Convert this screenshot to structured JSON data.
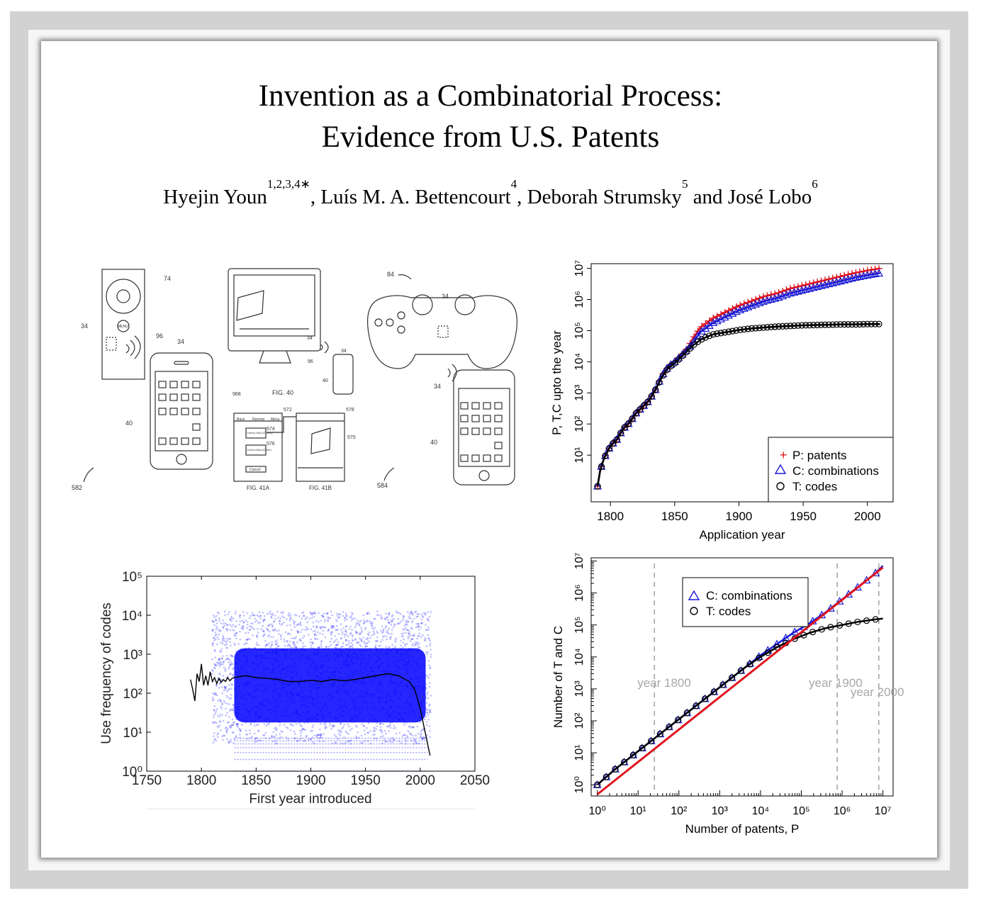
{
  "paper": {
    "title_line1": "Invention as a Combinatorial Process:",
    "title_line2": "Evidence from U.S. Patents",
    "authors": [
      {
        "name": "Hyejin Youn",
        "sup": "1,2,3,4∗",
        "sep": ", "
      },
      {
        "name": "Luís M. A. Bettencourt",
        "sup": "4",
        "sep": ", "
      },
      {
        "name": "Deborah Strumsky",
        "sup": "5",
        "sep": " and "
      },
      {
        "name": "José Lobo",
        "sup": "6",
        "sep": ""
      }
    ]
  },
  "drawings": {
    "labels": [
      "74",
      "34",
      "96",
      "34",
      "40",
      "582",
      "968",
      "FIG. 40",
      "34",
      "96",
      "34",
      "40",
      "572",
      "578",
      "574",
      "576",
      "570",
      "FIG. 41A",
      "FIG. 41B",
      "84",
      "34",
      "34",
      "40",
      "584"
    ],
    "ui_text": [
      "MENU",
      "Remote",
      "Menu",
      "Back",
      "Centro-Mac (iTunes)",
      "Centro-Mac (Other)",
      "Cancel"
    ]
  },
  "chart_data": [
    {
      "type": "line",
      "xlabel": "Application year",
      "ylabel": "P, T,C upto the year",
      "xlim": [
        1785,
        2020
      ],
      "ylim_log10": [
        -0.5,
        7.15
      ],
      "xticks": [
        1800,
        1850,
        1900,
        1950,
        2000
      ],
      "yticks": [
        "10¹",
        "10²",
        "10³",
        "10⁴",
        "10⁵",
        "10⁶",
        "10⁷"
      ],
      "legend_position": "bottom-right",
      "series": [
        {
          "name": "P: patents",
          "color": "#e0141e",
          "marker": "plus",
          "x": [
            1790,
            1792,
            1795,
            1800,
            1805,
            1810,
            1815,
            1820,
            1825,
            1830,
            1835,
            1840,
            1845,
            1850,
            1855,
            1860,
            1865,
            1870,
            1875,
            1880,
            1890,
            1900,
            1910,
            1920,
            1930,
            1940,
            1950,
            1960,
            1970,
            1980,
            1990,
            2000,
            2010
          ],
          "log10_y": [
            0.0,
            0.5,
            0.9,
            1.3,
            1.5,
            1.85,
            2.05,
            2.35,
            2.55,
            2.75,
            3.1,
            3.55,
            3.85,
            4.0,
            4.2,
            4.45,
            4.8,
            5.1,
            5.25,
            5.4,
            5.6,
            5.8,
            5.95,
            6.1,
            6.2,
            6.35,
            6.45,
            6.55,
            6.65,
            6.75,
            6.85,
            6.93,
            7.0
          ]
        },
        {
          "name": "C: combinations",
          "color": "#1a1ad6",
          "marker": "triangle",
          "x": [
            1790,
            1792,
            1795,
            1800,
            1805,
            1810,
            1815,
            1820,
            1825,
            1830,
            1835,
            1840,
            1845,
            1850,
            1855,
            1860,
            1865,
            1870,
            1875,
            1880,
            1890,
            1900,
            1910,
            1920,
            1930,
            1940,
            1950,
            1960,
            1970,
            1980,
            1990,
            2000,
            2010
          ],
          "log10_y": [
            0.0,
            0.5,
            0.9,
            1.3,
            1.5,
            1.85,
            2.05,
            2.35,
            2.55,
            2.75,
            3.1,
            3.55,
            3.85,
            4.0,
            4.2,
            4.4,
            4.65,
            4.95,
            5.1,
            5.25,
            5.45,
            5.65,
            5.8,
            5.95,
            6.05,
            6.2,
            6.3,
            6.4,
            6.5,
            6.6,
            6.7,
            6.78,
            6.85
          ]
        },
        {
          "name": "T: codes",
          "color": "#000000",
          "marker": "circle",
          "x": [
            1790,
            1792,
            1795,
            1800,
            1805,
            1810,
            1815,
            1820,
            1825,
            1830,
            1835,
            1840,
            1845,
            1850,
            1855,
            1860,
            1865,
            1870,
            1875,
            1880,
            1890,
            1900,
            1910,
            1920,
            1930,
            1940,
            1950,
            1960,
            1970,
            1980,
            1990,
            2000,
            2010
          ],
          "log10_y": [
            0.0,
            0.5,
            0.9,
            1.3,
            1.5,
            1.85,
            2.05,
            2.35,
            2.55,
            2.75,
            3.1,
            3.5,
            3.8,
            3.95,
            4.15,
            4.35,
            4.55,
            4.7,
            4.8,
            4.88,
            4.95,
            5.02,
            5.07,
            5.1,
            5.13,
            5.15,
            5.17,
            5.18,
            5.19,
            5.2,
            5.2,
            5.21,
            5.21
          ]
        }
      ]
    },
    {
      "type": "scatter",
      "xlabel": "First year introduced",
      "ylabel": "Use frequency of codes",
      "xlim": [
        1750,
        2050
      ],
      "ylim_log10": [
        0,
        5
      ],
      "xticks": [
        1750,
        1800,
        1850,
        1900,
        1950,
        2000,
        2050
      ],
      "yticks": [
        "10⁰",
        "10¹",
        "10²",
        "10³",
        "10⁴",
        "10⁵"
      ],
      "point_color": "#0000ff",
      "cloud": {
        "x_start": 1830,
        "x_end": 2005,
        "log10_low": 1.0,
        "log10_high": 3.5
      },
      "series": [
        {
          "type": "line",
          "color": "#000000",
          "x": [
            1790,
            1792,
            1794,
            1796,
            1798,
            1800,
            1802,
            1804,
            1806,
            1808,
            1810,
            1812,
            1814,
            1816,
            1818,
            1820,
            1822,
            1824,
            1826,
            1828,
            1830,
            1840,
            1850,
            1860,
            1870,
            1880,
            1890,
            1900,
            1910,
            1920,
            1930,
            1940,
            1950,
            1960,
            1970,
            1980,
            1990,
            1995,
            2000,
            2003,
            2006,
            2009
          ],
          "log10_y": [
            2.35,
            2.1,
            1.8,
            2.5,
            2.3,
            2.75,
            2.2,
            2.45,
            2.2,
            2.55,
            2.3,
            2.4,
            2.25,
            2.38,
            2.28,
            2.35,
            2.3,
            2.4,
            2.32,
            2.38,
            2.4,
            2.45,
            2.4,
            2.38,
            2.35,
            2.3,
            2.3,
            2.33,
            2.3,
            2.35,
            2.32,
            2.35,
            2.4,
            2.45,
            2.5,
            2.45,
            2.3,
            2.1,
            1.6,
            1.2,
            0.8,
            0.4
          ]
        }
      ]
    },
    {
      "type": "scatter",
      "xlabel": "Number of patents, P",
      "ylabel": "Number of T and C",
      "xscale": "log",
      "xlim_log10": [
        -0.15,
        7.25
      ],
      "ylim_log10": [
        -0.35,
        7.1
      ],
      "xticks": [
        "10⁰",
        "10¹",
        "10²",
        "10³",
        "10⁴",
        "10⁵",
        "10⁶",
        "10⁷"
      ],
      "yticks": [
        "10⁰",
        "10¹",
        "10²",
        "10³",
        "10⁴",
        "10⁵",
        "10⁶",
        "10⁷"
      ],
      "legend_position": "top-left",
      "annotations": [
        {
          "text": "year 1800",
          "log10_x": 1.4
        },
        {
          "text": "year 1900",
          "log10_x": 5.88
        },
        {
          "text": "year 2000",
          "log10_x": 6.9
        }
      ],
      "fit_line": {
        "color": "#e0141e",
        "log10_x": [
          0,
          7.0
        ],
        "log10_y": [
          -0.3,
          6.8
        ]
      },
      "series": [
        {
          "name": "C: combinations",
          "color": "#1a1ad6",
          "marker": "triangle",
          "log10_x": [
            0.0,
            0.45,
            0.8,
            1.1,
            1.4,
            1.7,
            2.0,
            2.4,
            2.8,
            3.2,
            3.6,
            4.0,
            4.4,
            4.8,
            5.2,
            5.6,
            6.0,
            6.4,
            6.8,
            7.0
          ],
          "log10_y": [
            0.0,
            0.5,
            0.85,
            1.15,
            1.45,
            1.75,
            2.05,
            2.45,
            2.85,
            3.25,
            3.65,
            4.05,
            4.4,
            4.75,
            5.05,
            5.4,
            5.8,
            6.2,
            6.6,
            6.85
          ]
        },
        {
          "name": "T: codes",
          "color": "#000000",
          "marker": "circle",
          "log10_x": [
            0.0,
            0.45,
            0.8,
            1.1,
            1.4,
            1.7,
            2.0,
            2.4,
            2.8,
            3.2,
            3.6,
            4.0,
            4.4,
            4.8,
            5.2,
            5.6,
            6.0,
            6.4,
            6.8,
            7.0
          ],
          "log10_y": [
            0.0,
            0.5,
            0.85,
            1.15,
            1.45,
            1.75,
            2.05,
            2.45,
            2.85,
            3.25,
            3.65,
            4.0,
            4.3,
            4.55,
            4.75,
            4.9,
            5.0,
            5.1,
            5.17,
            5.2
          ]
        }
      ]
    }
  ]
}
